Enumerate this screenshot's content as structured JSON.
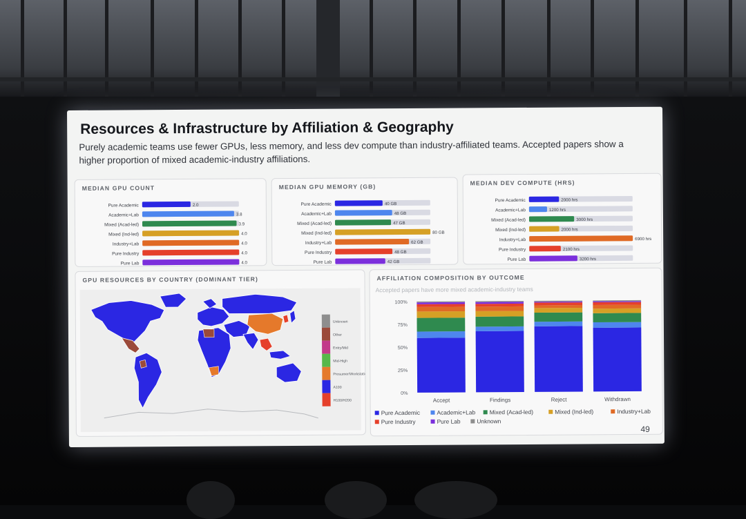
{
  "slide": {
    "title": "Resources & Infrastructure by Affiliation & Geography",
    "subtitle": "Purely academic teams use fewer GPUs, less memory, and less dev compute than industry-affiliated teams. Accepted papers show a higher proportion of mixed academic-industry affiliations.",
    "page_number": "49"
  },
  "colors": {
    "Pure Academic": "#2b27e3",
    "Academic+Lab": "#4e86ee",
    "Mixed (Acad-led)": "#2f8a4f",
    "Mixed (Ind-led)": "#d6a025",
    "Industry+Lab": "#e06a25",
    "Pure Industry": "#e5402b",
    "Pure Lab": "#7b2fdc",
    "Unknown": "#8e8e8e",
    "track": "#d9dae3"
  },
  "chart_data": [
    {
      "type": "bar",
      "orientation": "horizontal",
      "title": "MEDIAN GPU COUNT",
      "categories": [
        "Pure Academic",
        "Academic+Lab",
        "Mixed (Acad-led)",
        "Mixed (Ind-led)",
        "Industry+Lab",
        "Pure Industry",
        "Pure Lab"
      ],
      "values": [
        2.0,
        3.8,
        3.9,
        4.0,
        4.0,
        4.0,
        4.0
      ],
      "labels": [
        "2.0",
        "3.8",
        "3.9",
        "4.0",
        "4.0",
        "4.0",
        "4.0"
      ],
      "max": 4.0
    },
    {
      "type": "bar",
      "orientation": "horizontal",
      "title": "MEDIAN GPU MEMORY (GB)",
      "categories": [
        "Pure Academic",
        "Academic+Lab",
        "Mixed (Acad-led)",
        "Mixed (Ind-led)",
        "Industry+Lab",
        "Pure Industry",
        "Pure Lab"
      ],
      "values": [
        40,
        48,
        47,
        80,
        62,
        48,
        42
      ],
      "labels": [
        "40 GB",
        "48 GB",
        "47 GB",
        "80 GB",
        "62 GB",
        "48 GB",
        "42 GB"
      ],
      "max": 80
    },
    {
      "type": "bar",
      "orientation": "horizontal",
      "title": "MEDIAN DEV COMPUTE (HRS)",
      "categories": [
        "Pure Academic",
        "Academic+Lab",
        "Mixed (Acad-led)",
        "Mixed (Ind-led)",
        "Industry+Lab",
        "Pure Industry",
        "Pure Lab"
      ],
      "values": [
        2000,
        1200,
        3000,
        2000,
        6900,
        2100,
        3200
      ],
      "labels": [
        "2000 hrs",
        "1200 hrs",
        "3000 hrs",
        "2000 hrs",
        "6900 hrs",
        "2100 hrs",
        "3200 hrs"
      ],
      "max": 6900
    },
    {
      "type": "bar",
      "stacked": true,
      "title": "AFFILIATION COMPOSITION BY OUTCOME",
      "subtitle": "Accepted papers have more mixed academic-industry teams",
      "categories": [
        "Accept",
        "Findings",
        "Reject",
        "Withdrawn"
      ],
      "ylim": [
        0,
        100
      ],
      "yticks": [
        "0%",
        "25%",
        "50%",
        "75%",
        "100%"
      ],
      "series": [
        {
          "name": "Pure Academic",
          "values": [
            60,
            67,
            72,
            70
          ]
        },
        {
          "name": "Academic+Lab",
          "values": [
            7,
            5,
            5,
            6
          ]
        },
        {
          "name": "Mixed (Acad-led)",
          "values": [
            15,
            11,
            10,
            10
          ]
        },
        {
          "name": "Mixed (Ind-led)",
          "values": [
            7,
            6,
            5,
            5
          ]
        },
        {
          "name": "Industry+Lab",
          "values": [
            5,
            5,
            3,
            4
          ]
        },
        {
          "name": "Pure Industry",
          "values": [
            3,
            3,
            3,
            3
          ]
        },
        {
          "name": "Pure Lab",
          "values": [
            2,
            2,
            1,
            1
          ]
        },
        {
          "name": "Unknown",
          "values": [
            1,
            1,
            1,
            1
          ]
        }
      ],
      "legend_position": "bottom"
    }
  ],
  "map": {
    "title": "GPU RESOURCES BY COUNTRY (DOMINANT TIER)",
    "legend": [
      {
        "label": "Unknown",
        "color": "#8e8e8e"
      },
      {
        "label": "Other",
        "color": "#9b4a3a"
      },
      {
        "label": "Entry/Mid",
        "color": "#c23a8a"
      },
      {
        "label": "Mid-High",
        "color": "#57b84a"
      },
      {
        "label": "Prosumer/Workstation",
        "color": "#e5792b"
      },
      {
        "label": "A100",
        "color": "#2b27e3"
      },
      {
        "label": "H100/H200",
        "color": "#e5402b"
      }
    ]
  }
}
